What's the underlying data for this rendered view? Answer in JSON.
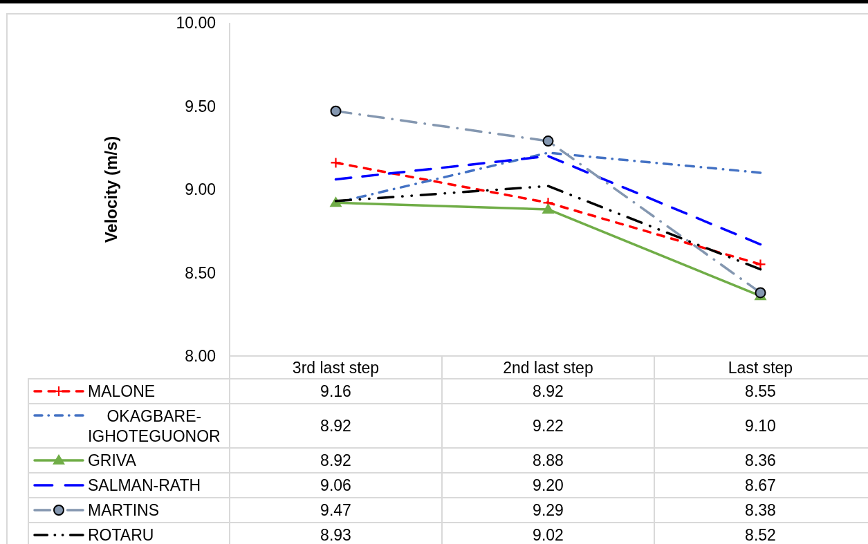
{
  "chart_data": {
    "type": "line",
    "ylabel": "Velocity (m/s)",
    "categories": [
      "3rd last step",
      "2nd last step",
      "Last step"
    ],
    "ylim": [
      8,
      10
    ],
    "yticks": [
      {
        "value": 8,
        "label": "8.00"
      },
      {
        "value": 8.5,
        "label": "8.50"
      },
      {
        "value": 9,
        "label": "9.00"
      },
      {
        "value": 9.5,
        "label": "9.50"
      },
      {
        "value": 10,
        "label": "10.00"
      }
    ],
    "legend": "bottom",
    "series": [
      {
        "name": "MALONE",
        "color": "#ff0000",
        "values": [
          9.16,
          8.92,
          8.55
        ],
        "value_labels": [
          "9.16",
          "8.92",
          "8.55"
        ],
        "marker": "cross",
        "line_style": "dashed"
      },
      {
        "name": "OKAGBARE-IGHOTEGUONOR",
        "color": "#4472c4",
        "values": [
          8.92,
          9.22,
          9.1
        ],
        "value_labels": [
          "8.92",
          "9.22",
          "9.10"
        ],
        "line_style": "dashdot"
      },
      {
        "name": "GRIVA",
        "color": "#70ad47",
        "values": [
          8.92,
          8.88,
          8.36
        ],
        "value_labels": [
          "8.92",
          "8.88",
          "8.36"
        ],
        "marker": "triangle",
        "line_style": "solid"
      },
      {
        "name": "SALMAN-RATH",
        "color": "#0000ff",
        "values": [
          9.06,
          9.2,
          8.67
        ],
        "value_labels": [
          "9.06",
          "9.20",
          "8.67"
        ],
        "line_style": "longdash"
      },
      {
        "name": "MARTINS",
        "color": "#8497b0",
        "values": [
          9.47,
          9.29,
          8.38
        ],
        "value_labels": [
          "9.47",
          "9.29",
          "8.38"
        ],
        "marker": "circle",
        "line_style": "longdashdot"
      },
      {
        "name": "ROTARU",
        "color": "#000000",
        "values": [
          8.93,
          9.02,
          8.52
        ],
        "value_labels": [
          "8.93",
          "9.02",
          "8.52"
        ],
        "line_style": "dashdotdot"
      }
    ]
  }
}
